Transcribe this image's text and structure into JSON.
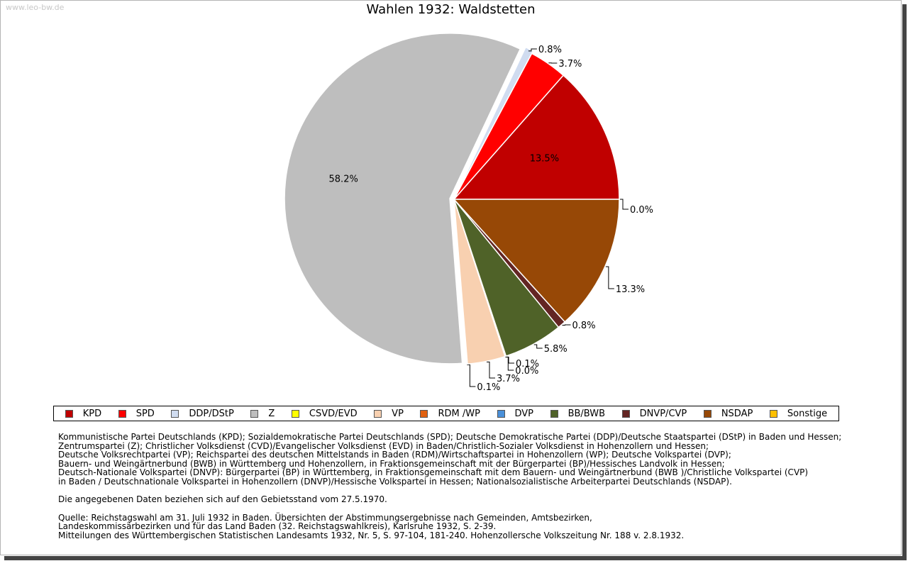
{
  "site_label": "www.leo-bw.de",
  "chart_data": {
    "type": "pie",
    "title": "Wahlen 1932: Waldstetten",
    "start_angle_deg": 90,
    "slices": [
      {
        "name": "KPD",
        "value": 13.5,
        "label": "13.5%",
        "color": "#c00000"
      },
      {
        "name": "SPD",
        "value": 3.7,
        "label": "3.7%",
        "color": "#ff0000"
      },
      {
        "name": "DDP/DStP",
        "value": 0.8,
        "label": "0.8%",
        "color": "#d0dcf0"
      },
      {
        "name": "Z",
        "value": 58.2,
        "label": "58.2%",
        "color": "#bebebe"
      },
      {
        "name": "CSVD/EVD",
        "value": 0.1,
        "label": "0.1%",
        "color": "#ffff00"
      },
      {
        "name": "VP",
        "value": 3.7,
        "label": "3.7%",
        "color": "#f8d0b0"
      },
      {
        "name": "RDM /WP",
        "value": 0.0,
        "label": "0.0%",
        "color": "#e06010"
      },
      {
        "name": "DVP",
        "value": 0.1,
        "label": "0.1%",
        "color": "#4a90d9"
      },
      {
        "name": "BB/BWB",
        "value": 5.8,
        "label": "5.8%",
        "color": "#4f6228"
      },
      {
        "name": "DNVP/CVP",
        "value": 0.8,
        "label": "0.8%",
        "color": "#632523"
      },
      {
        "name": "NSDAP",
        "value": 13.3,
        "label": "13.3%",
        "color": "#974806"
      },
      {
        "name": "Sonstige",
        "value": 0.0,
        "label": "0.0%",
        "color": "#ffc000"
      }
    ]
  },
  "legend": [
    {
      "name": "KPD",
      "color": "#c00000"
    },
    {
      "name": "SPD",
      "color": "#ff0000"
    },
    {
      "name": "DDP/DStP",
      "color": "#d0dcf0"
    },
    {
      "name": "Z",
      "color": "#bebebe"
    },
    {
      "name": "CSVD/EVD",
      "color": "#ffff00"
    },
    {
      "name": "VP",
      "color": "#f8d0b0"
    },
    {
      "name": "RDM /WP",
      "color": "#e06010"
    },
    {
      "name": "DVP",
      "color": "#4a90d9"
    },
    {
      "name": "BB/BWB",
      "color": "#4f6228"
    },
    {
      "name": "DNVP/CVP",
      "color": "#632523"
    },
    {
      "name": "NSDAP",
      "color": "#974806"
    },
    {
      "name": "Sonstige",
      "color": "#ffc000"
    }
  ],
  "notes": {
    "parties": [
      "Kommunistische Partei Deutschlands (KPD); Sozialdemokratische Partei Deutschlands (SPD); Deutsche Demokratische Partei (DDP)/Deutsche Staatspartei (DStP) in Baden und Hessen;",
      "Zentrumspartei (Z); Christlicher Volksdienst (CVD)/Evangelischer Volksdienst (EVD) in Baden/Christlich-Sozialer Volksdienst in Hohenzollern und Hessen;",
      "Deutsche Volksrechtpartei (VP); Reichspartei des deutschen Mittelstands in Baden (RDM)/Wirtschaftspartei in Hohenzollern (WP); Deutsche Volkspartei (DVP);",
      "Bauern- und Weingärtnerbund (BWB) in Württemberg und Hohenzollern, in Fraktionsgemeinschaft mit der Bürgerpartei (BP)/Hessisches Landvolk in Hessen;",
      "Deutsch-Nationale Volkspartei (DNVP): Bürgerpartei (BP) in Württemberg, in Fraktionsgemeinschaft mit dem Bauern- und Weingärtnerbund (BWB )/Christliche Volkspartei (CVP)",
      "in Baden / Deutschnationale Volkspartei in Hohenzollern (DNVP)/Hessische Volkspartei in Hessen; Nationalsozialistische Arbeiterpartei Deutschlands (NSDAP)."
    ],
    "territory": "Die angegebenen Daten beziehen sich auf den Gebietsstand vom 27.5.1970.",
    "source": [
      "Quelle: Reichstagswahl am 31. Juli 1932 in Baden. Übersichten der Abstimmungsergebnisse nach Gemeinden, Amtsbezirken,",
      "Landeskommissärbezirken und für das Land Baden (32. Reichstagswahlkreis), Karlsruhe 1932, S. 2-39.",
      "Mitteilungen des Württembergischen Statistischen Landesamts 1932, Nr. 5, S. 97-104, 181-240. Hohenzollersche Volkszeitung Nr. 188 v. 2.8.1932."
    ]
  }
}
